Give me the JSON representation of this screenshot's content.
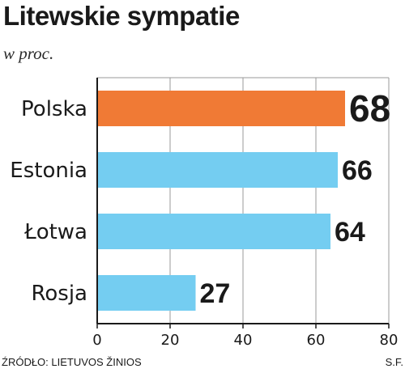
{
  "chart_data": {
    "type": "bar",
    "orientation": "horizontal",
    "title": "Litewskie sympatie",
    "subtitle": "w proc.",
    "categories": [
      "Polska",
      "Estonia",
      "Łotwa",
      "Rosja"
    ],
    "values": [
      68,
      66,
      64,
      27
    ],
    "value_labels": [
      "68",
      "66",
      "64",
      "27"
    ],
    "highlight_index": 0,
    "xlim": [
      0,
      80
    ],
    "x_ticks": [
      0,
      20,
      40,
      60,
      80
    ],
    "x_tick_labels": [
      "0",
      "20",
      "40",
      "60",
      "80"
    ],
    "grid": true,
    "legend": "none",
    "colors": {
      "highlight": "#f07a35",
      "bar": "#74cdf1",
      "grid": "#999999",
      "axis": "#1a1a1a",
      "text": "#1a1a1a"
    }
  },
  "footer": {
    "source": "ŹRÓDŁO: LIETUVOS ŽINIOS",
    "author": "S.F."
  }
}
